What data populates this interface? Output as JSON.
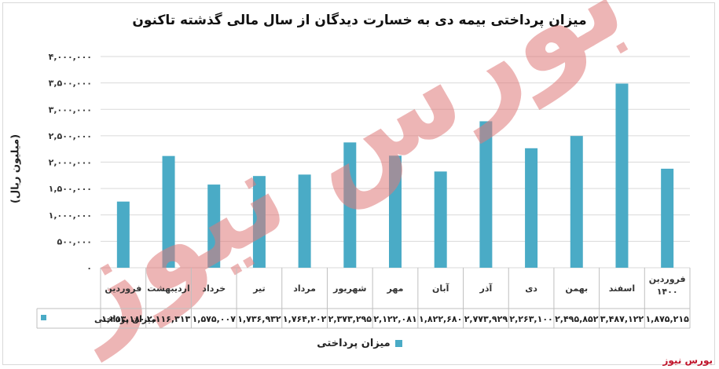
{
  "chart_data": {
    "type": "bar",
    "title": "میزان پرداختی بیمه دی به خسارت دیدگان از سال مالی گذشته تاکنون",
    "ylabel": "(میلیون ریال)",
    "ylim": [
      0,
      4000000
    ],
    "yticks": [
      0,
      500000,
      1000000,
      1500000,
      2000000,
      2500000,
      3000000,
      3500000,
      4000000
    ],
    "ytick_labels": [
      "۰",
      "۵۰۰,۰۰۰",
      "۱,۰۰۰,۰۰۰",
      "۱,۵۰۰,۰۰۰",
      "۲,۰۰۰,۰۰۰",
      "۲,۵۰۰,۰۰۰",
      "۳,۰۰۰,۰۰۰",
      "۳,۵۰۰,۰۰۰",
      "۴,۰۰۰,۰۰۰"
    ],
    "grid": true,
    "legend": "bottom",
    "color": "#4aabc6",
    "categories": [
      "فروردین",
      "اردیبهشت",
      "خرداد",
      "تیر",
      "مرداد",
      "شهریور",
      "مهر",
      "آبان",
      "آذر",
      "دی",
      "بهمن",
      "اسفند",
      "فروردین ۱۴۰۰"
    ],
    "series": [
      {
        "name": "میزان پرداختی",
        "values": [
          1253180,
          2116313,
          1575007,
          1736932,
          1764202,
          2373295,
          2122081,
          1822680,
          2773929,
          2263100,
          2495852,
          3487122,
          1875215
        ],
        "value_labels": [
          "۱,۲۵۳,۱۸۰",
          "۲,۱۱۶,۳۱۳",
          "۱,۵۷۵,۰۰۷",
          "۱,۷۳۶,۹۳۲",
          "۱,۷۶۴,۲۰۲",
          "۲,۳۷۳,۲۹۵",
          "۲,۱۲۲,۰۸۱",
          "۱,۸۲۲,۶۸۰",
          "۲,۷۷۳,۹۲۹",
          "۲,۲۶۳,۱۰۰",
          "۲,۴۹۵,۸۵۲",
          "۳,۴۸۷,۱۲۲",
          "۱,۸۷۵,۲۱۵"
        ]
      }
    ]
  },
  "watermark": "بورس نیوز",
  "brand": "بورس نیوز"
}
